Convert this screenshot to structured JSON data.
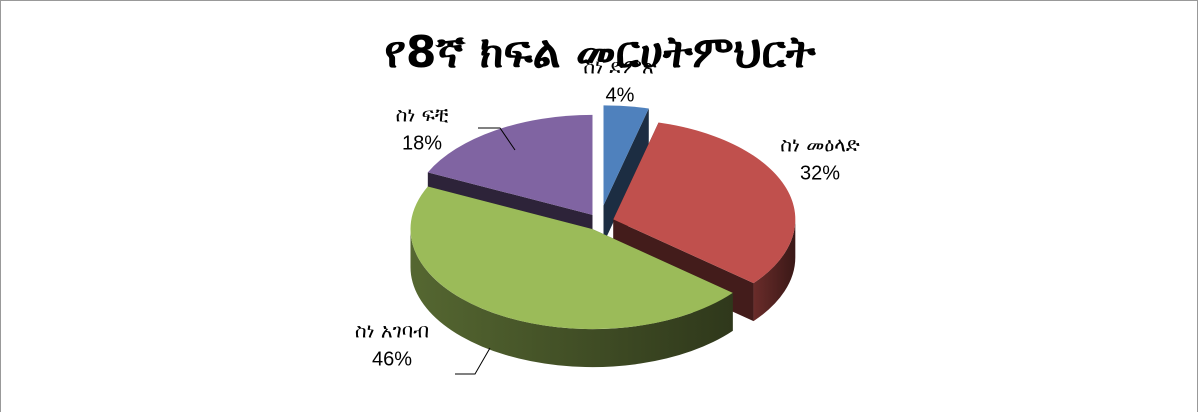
{
  "chart_data": {
    "type": "pie",
    "title": "የ8ኛ ክፍል መርሀትምህርት",
    "categories": [
      "ስነ ድምጽ",
      "ስነ መዕላድ",
      "ስነ አገባብ",
      "ስነ ፍቺ"
    ],
    "values": [
      4,
      32,
      46,
      18
    ],
    "value_labels": [
      "4%",
      "32%",
      "46%",
      "18%"
    ],
    "colors": [
      "#4f81bd",
      "#c0504d",
      "#9bbb59",
      "#8064a2"
    ]
  }
}
